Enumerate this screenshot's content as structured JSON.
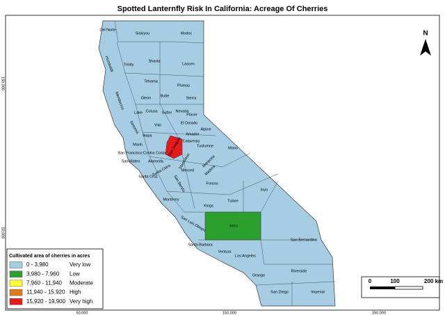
{
  "title": "Spotted Lanternfly Risk In California: Acreage Of Cherries",
  "legend": {
    "title": "Cultivated area of cherries in acres",
    "items": [
      {
        "range": "0 - 3,980",
        "risk": "Very low",
        "color": "#a6cde3"
      },
      {
        "range": "3,980 - 7,960",
        "risk": "Low",
        "color": "#2ca02c"
      },
      {
        "range": "7,960 - 11,940",
        "risk": "Moderate",
        "color": "#ffff33"
      },
      {
        "range": "11,940 - 15,920",
        "risk": "High",
        "color": "#e07b1a"
      },
      {
        "range": "15,920 - 19,900",
        "risk": "Very high",
        "color": "#e41a1c"
      }
    ]
  },
  "north": "N",
  "scale_bar": {
    "labels": [
      "0",
      "100",
      "200 km"
    ]
  },
  "x_labels": [
    "50,000",
    "150,000",
    "250,000"
  ],
  "y_labels": [
    "150,000",
    "50,000"
  ],
  "counties": [
    "Del Norte",
    "Siskiyou",
    "Modoc",
    "Humboldt",
    "Trinity",
    "Shasta",
    "Lassen",
    "Tehama",
    "Plumas",
    "Glenn",
    "Butte",
    "Mendocino",
    "Sierra",
    "Lake",
    "Colusa",
    "Sutter",
    "Nevada",
    "Placer",
    "Sonoma",
    "Yolo",
    "El Dorado",
    "Alpine",
    "Napa",
    "Marin",
    "Amador",
    "Calaveras",
    "San Francisco",
    "Contra Costa",
    "San Joaquin",
    "Tuolumne",
    "Mono",
    "San Mateo",
    "Alameda",
    "Stanislaus",
    "Mariposa",
    "Santa Clara",
    "Merced",
    "Madera",
    "Santa Cruz",
    "San Benito",
    "Fresno",
    "Inyo",
    "Monterey",
    "Tulare",
    "Kings",
    "San Luis Obispo",
    "Kern",
    "San Bernardino",
    "Santa Barbara",
    "Ventura",
    "Los Angeles",
    "Orange",
    "Riverside",
    "San Diego",
    "Imperial"
  ]
}
